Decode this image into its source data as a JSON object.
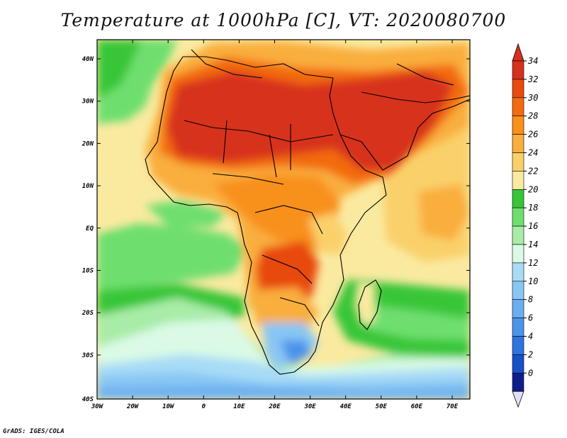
{
  "title": "Temperature at 1000hPa [C], VT: 2020080700",
  "credit": "GrADS: IGES/COLA",
  "lat_ticks": [
    "40N",
    "30N",
    "20N",
    "10N",
    "EQ",
    "10S",
    "20S",
    "30S",
    "40S"
  ],
  "lon_ticks": [
    "30W",
    "20W",
    "10W",
    "0",
    "10E",
    "20E",
    "30E",
    "40E",
    "50E",
    "60E",
    "70E"
  ],
  "colorbar": {
    "labels": [
      "34",
      "32",
      "30",
      "28",
      "26",
      "24",
      "22",
      "20",
      "18",
      "16",
      "14",
      "12",
      "10",
      "8",
      "6",
      "4",
      "2",
      "0"
    ],
    "colors": [
      "#d7301f",
      "#e84a10",
      "#f36b10",
      "#f8901a",
      "#f9ae3e",
      "#fad06a",
      "#faeaa0",
      "#37c637",
      "#6edf6e",
      "#a8eca8",
      "#dafae6",
      "#a8dcf6",
      "#88c6f4",
      "#6aaef0",
      "#4c93ea",
      "#2e74e0",
      "#1850c8",
      "#0e1e8c"
    ],
    "under_color": "#e0e0fa"
  },
  "chart_data": {
    "type": "heatmap",
    "title": "Temperature at 1000hPa [C], VT: 2020080700",
    "xlim": [
      -30,
      75
    ],
    "ylim": [
      -40,
      45
    ],
    "value_range": [
      0,
      34
    ],
    "units": "C"
  }
}
